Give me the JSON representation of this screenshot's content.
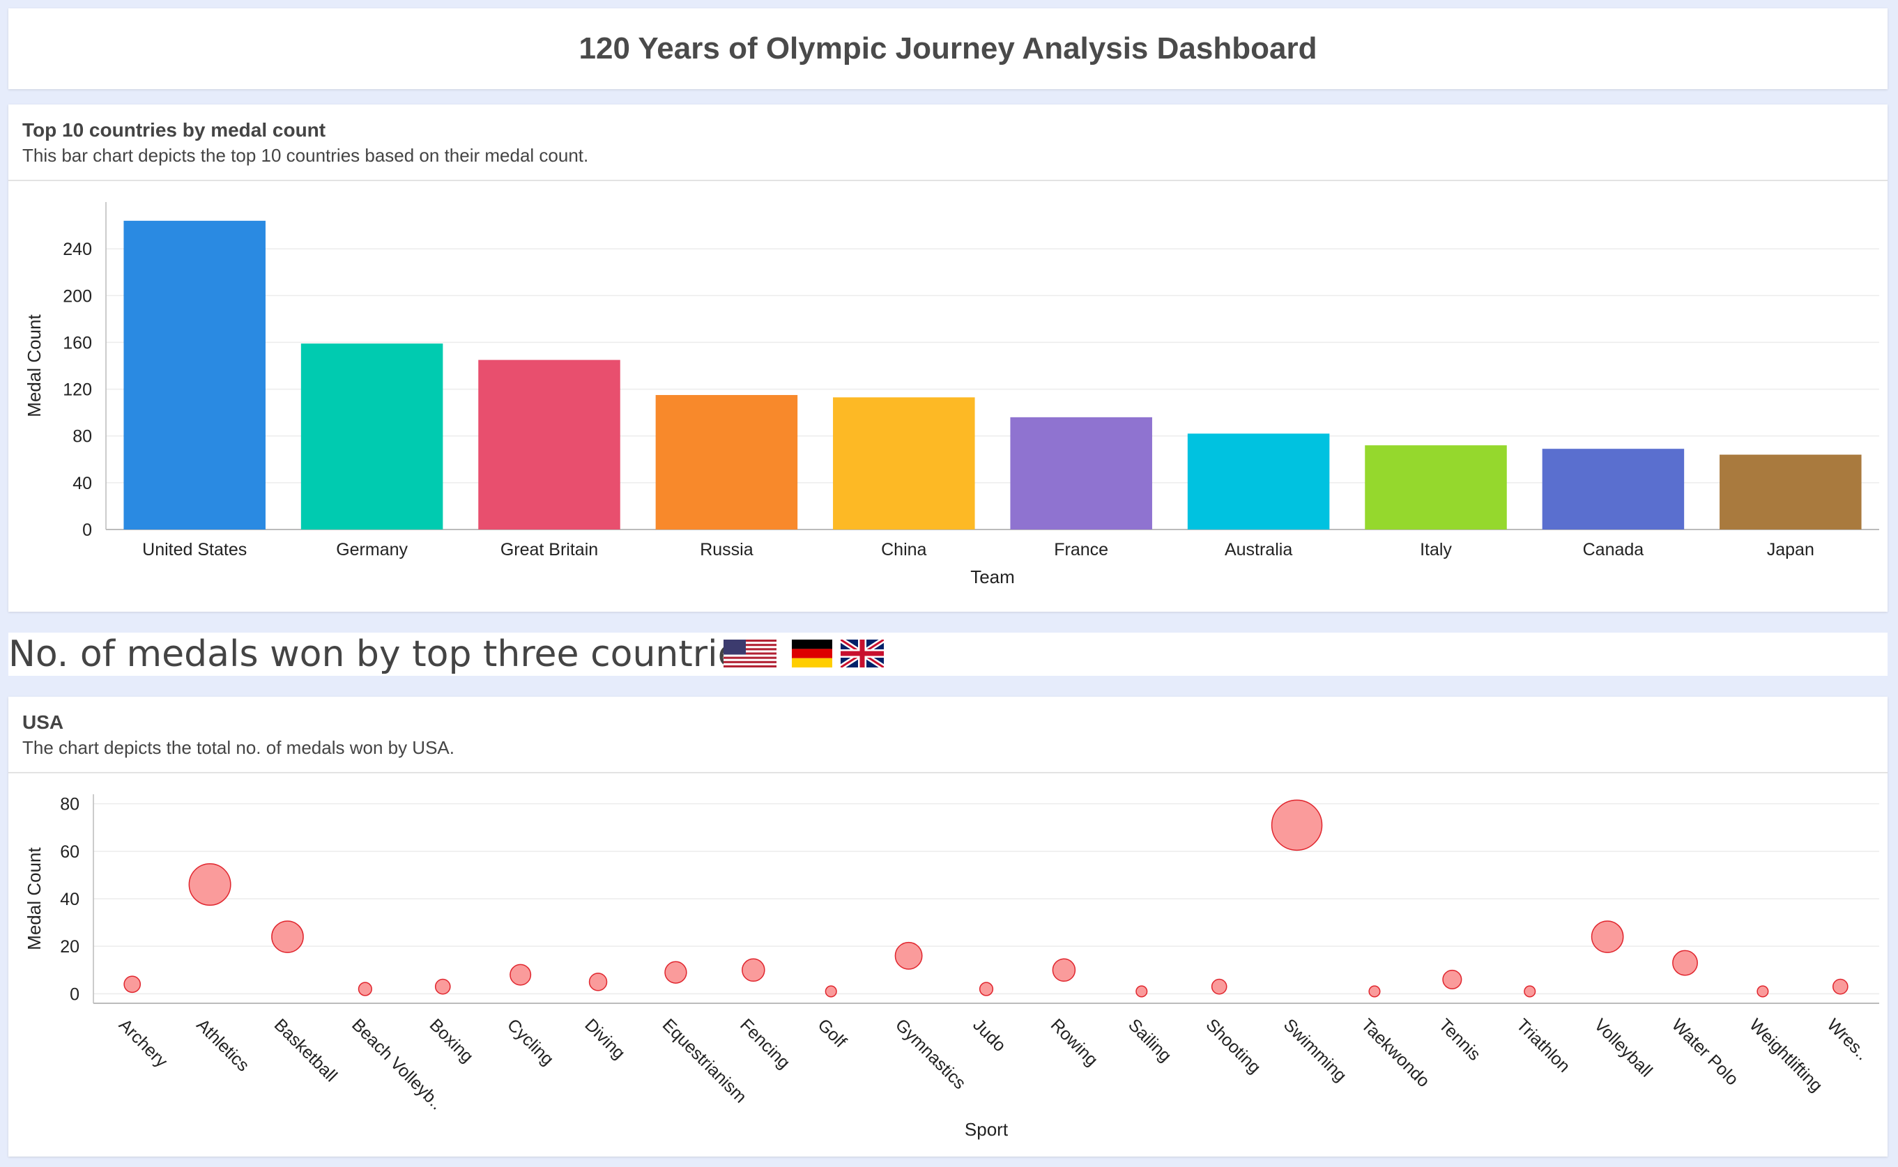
{
  "dashboard": {
    "title": "120 Years of Olympic Journey Analysis Dashboard"
  },
  "bar_card": {
    "title": "Top 10 countries by medal count",
    "subtitle": "This bar chart depicts the top 10 countries based on their medal count."
  },
  "section": {
    "heading": "No. of medals won by top three countries",
    "flags": [
      "usa-flag-icon",
      "germany-flag-icon",
      "uk-flag-icon"
    ]
  },
  "bubble_card": {
    "title": "USA",
    "subtitle": "The chart depicts the total no. of medals won by USA."
  },
  "chart_data": [
    {
      "type": "bar",
      "xlabel": "Team",
      "ylabel": "Medal Count",
      "ylim": [
        0,
        280
      ],
      "yticks": [
        0,
        40,
        80,
        120,
        160,
        200,
        240
      ],
      "categories": [
        "United States",
        "Germany",
        "Great Britain",
        "Russia",
        "China",
        "France",
        "Australia",
        "Italy",
        "Canada",
        "Japan"
      ],
      "values": [
        264,
        159,
        145,
        115,
        113,
        96,
        82,
        72,
        69,
        64
      ],
      "colors": [
        "#2a8ae2",
        "#00cbb0",
        "#e84f6e",
        "#f8892b",
        "#fdb925",
        "#8f73d0",
        "#00c2e0",
        "#95d82d",
        "#5a6fcf",
        "#a97a3e"
      ],
      "grid": true
    },
    {
      "type": "scatter",
      "xlabel": "Sport",
      "ylabel": "Medal Count",
      "ylim": [
        -4,
        84
      ],
      "yticks": [
        0,
        20,
        40,
        60,
        80
      ],
      "categories": [
        "Archery",
        "Athletics",
        "Basketball",
        "Beach Volleyb..",
        "Boxing",
        "Cycling",
        "Diving",
        "Equestrianism",
        "Fencing",
        "Golf",
        "Gymnastics",
        "Judo",
        "Rowing",
        "Sailing",
        "Shooting",
        "Swimming",
        "Taekwondo",
        "Tennis",
        "Triathlon",
        "Volleyball",
        "Water Polo",
        "Weightlifting",
        "Wres.."
      ],
      "values": [
        4,
        46,
        24,
        2,
        3,
        8,
        5,
        9,
        10,
        1,
        16,
        2,
        10,
        1,
        3,
        71,
        1,
        6,
        1,
        24,
        13,
        1,
        3
      ],
      "color": "#fa9b9b",
      "edge_color": "#e0262e",
      "grid": true
    }
  ]
}
